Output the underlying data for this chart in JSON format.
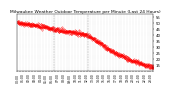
{
  "title": "Milwaukee Weather Outdoor Temperature per Minute (Last 24 Hours)",
  "title_fontsize": 3.2,
  "line_color": "red",
  "background_color": "white",
  "grid_color": "#bbbbbb",
  "ylim": [
    10,
    58
  ],
  "yticks": [
    15,
    20,
    25,
    30,
    35,
    40,
    45,
    50,
    55
  ],
  "ytick_fontsize": 2.8,
  "xtick_fontsize": 2.2,
  "vlines": [
    0.27,
    0.52
  ],
  "num_points": 1440,
  "breakpoints": [
    0,
    0.04,
    0.1,
    0.2,
    0.27,
    0.38,
    0.5,
    0.6,
    0.7,
    0.82,
    0.92,
    1.0
  ],
  "values": [
    51,
    50,
    49,
    47,
    45,
    43,
    41,
    34,
    26,
    20,
    16,
    13
  ],
  "noise_std": 0.9
}
